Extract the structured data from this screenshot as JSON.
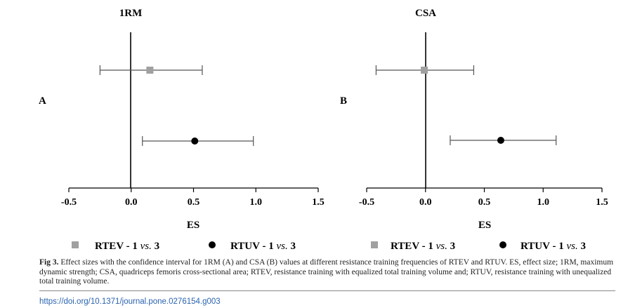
{
  "chart_data": [
    {
      "type": "scatter",
      "panel": "A",
      "title": "1RM",
      "xlabel": "ES",
      "xlim": [
        -0.5,
        1.5
      ],
      "xticks": [
        "-0.5",
        "0.0",
        "0.5",
        "1.0",
        "1.5"
      ],
      "xtick_values": [
        -0.5,
        0.0,
        0.5,
        1.0,
        1.5
      ],
      "series": [
        {
          "name": "RTEV - 1 vs. 3",
          "value": 0.15,
          "ci": [
            -0.25,
            0.57
          ],
          "marker": "square",
          "color": "#a0a0a0"
        },
        {
          "name": "RTUV - 1 vs. 3",
          "value": 0.51,
          "ci": [
            0.09,
            0.98
          ],
          "marker": "circle",
          "color": "#000000"
        }
      ],
      "legend": "bottom"
    },
    {
      "type": "scatter",
      "panel": "B",
      "title": "CSA",
      "xlabel": "ES",
      "xlim": [
        -0.5,
        1.5
      ],
      "xticks": [
        "-0.5",
        "0.0",
        "0.5",
        "1.0",
        "1.5"
      ],
      "xtick_values": [
        -0.5,
        0.0,
        0.5,
        1.0,
        1.5
      ],
      "series": [
        {
          "name": "RTEV - 1 vs. 3",
          "value": -0.01,
          "ci": [
            -0.42,
            0.41
          ],
          "marker": "square",
          "color": "#a0a0a0"
        },
        {
          "name": "RTUV - 1 vs. 3",
          "value": 0.64,
          "ci": [
            0.21,
            1.11
          ],
          "marker": "circle",
          "color": "#000000"
        }
      ],
      "legend": "bottom"
    }
  ],
  "legend": {
    "rtev": {
      "label_main": "RTEV - 1 ",
      "label_vs": "vs.",
      "label_num": " 3"
    },
    "rtuv": {
      "label_main": "RTUV - 1 ",
      "label_vs": "vs.",
      "label_num": " 3"
    }
  },
  "caption": {
    "label": "Fig 3.",
    "text": "Effect sizes with the confidence interval for 1RM (A) and CSA (B) values at different resistance training frequencies of RTEV and RTUV. ES, effect size; 1RM, maximum dynamic strength; CSA, quadriceps femoris cross-sectional area; RTEV, resistance training with equalized total training volume and; RTUV, resistance training with unequalized total training volume."
  },
  "doi": "https://doi.org/10.1371/journal.pone.0276154.g003"
}
